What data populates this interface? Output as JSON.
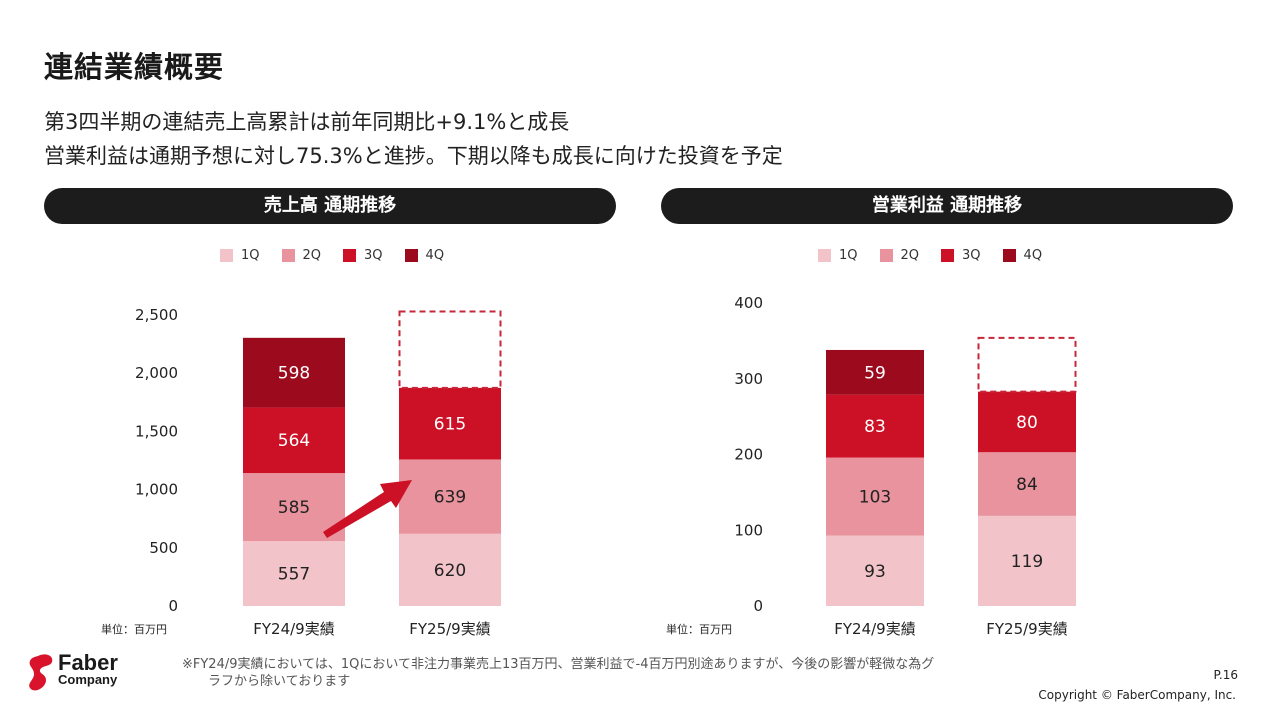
{
  "title": "連結業績概要",
  "subtitle_lines": [
    "第3四半期の連結売上高累計は前年同期比+9.1%と成長",
    "営業利益は通期予想に対し75.3%と進捗。下期以降も成長に向けた投資を予定"
  ],
  "colors": {
    "q1": "#f2c4ca",
    "q2": "#e8939d",
    "q3": "#cc1126",
    "q4": "#9c0b1d",
    "panel": "#1c1c1c"
  },
  "unit_label": "単位：百万円",
  "chart_data": [
    {
      "type": "bar",
      "stacked": true,
      "title": "売上高 通期推移",
      "categories": [
        "FY24/9実績",
        "FY25/9実績"
      ],
      "series": [
        {
          "name": "1Q",
          "values": [
            557,
            620
          ]
        },
        {
          "name": "2Q",
          "values": [
            585,
            639
          ]
        },
        {
          "name": "3Q",
          "values": [
            564,
            615
          ]
        },
        {
          "name": "4Q",
          "values": [
            598,
            null
          ]
        }
      ],
      "yticks": [
        "0",
        "500",
        "1,000",
        "1,500",
        "2,000",
        "2,500"
      ],
      "ylim": [
        0,
        2500
      ],
      "forecast_outline_top": 2530,
      "grid": false,
      "legend": "top",
      "annotations": [
        "arrow from FY24/9実績 to FY25/9実績"
      ]
    },
    {
      "type": "bar",
      "stacked": true,
      "title": "営業利益 通期推移",
      "categories": [
        "FY24/9実績",
        "FY25/9実績"
      ],
      "series": [
        {
          "name": "1Q",
          "values": [
            93,
            119
          ]
        },
        {
          "name": "2Q",
          "values": [
            103,
            84
          ]
        },
        {
          "name": "3Q",
          "values": [
            83,
            80
          ]
        },
        {
          "name": "4Q",
          "values": [
            59,
            null
          ]
        }
      ],
      "yticks": [
        "0",
        "100",
        "200",
        "300",
        "400"
      ],
      "ylim": [
        0,
        400
      ],
      "forecast_outline_top": 354,
      "grid": false,
      "legend": "top"
    }
  ],
  "footnote_lines": [
    "※FY24/9実績においては、1Qにおいて非注力事業売上13百万円、営業利益で-4百万円別途ありますが、今後の影響が軽微な為グ",
    "ラフから除いております"
  ],
  "logo": {
    "line1": "Faber",
    "line2": "Company"
  },
  "page_number": "P.16",
  "copyright": "Copyright © FaberCompany, Inc."
}
